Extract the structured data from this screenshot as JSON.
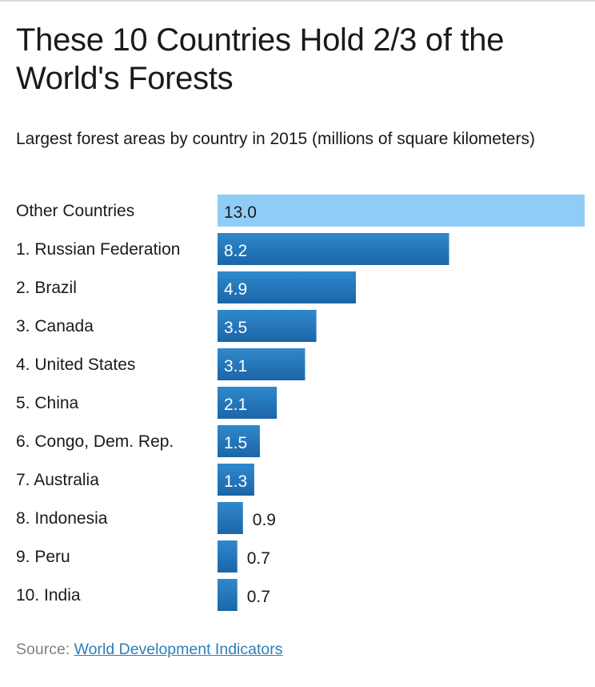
{
  "title": "These 10 Countries Hold 2/3 of the World's Forests",
  "subtitle": "Largest forest areas by country in 2015 (millions of square kilometers)",
  "source": {
    "label": "Source:",
    "link_text": "World Development Indicators"
  },
  "colors": {
    "highlight_bar": "#8fcdf7",
    "bar_top": "#2f89cc",
    "bar_bottom": "#1b65a8",
    "label_inside": "#ffffff",
    "label_outside": "#1a1a1a"
  },
  "chart_data": {
    "type": "bar",
    "orientation": "horizontal",
    "categories": [
      "Other Countries",
      "1. Russian Federation",
      "2. Brazil",
      "3. Canada",
      "4. United States",
      "5. China",
      "6. Congo, Dem. Rep.",
      "7. Australia",
      "8. Indonesia",
      "9. Peru",
      "10. India"
    ],
    "values": [
      13.0,
      8.2,
      4.9,
      3.5,
      3.1,
      2.1,
      1.5,
      1.3,
      0.9,
      0.7,
      0.7
    ],
    "value_labels": [
      "13.0",
      "8.2",
      "4.9",
      "3.5",
      "3.1",
      "2.1",
      "1.5",
      "1.3",
      "0.9",
      "0.7",
      "0.7"
    ],
    "xlim": [
      0,
      13.0
    ],
    "grid": false,
    "legend": "none"
  }
}
